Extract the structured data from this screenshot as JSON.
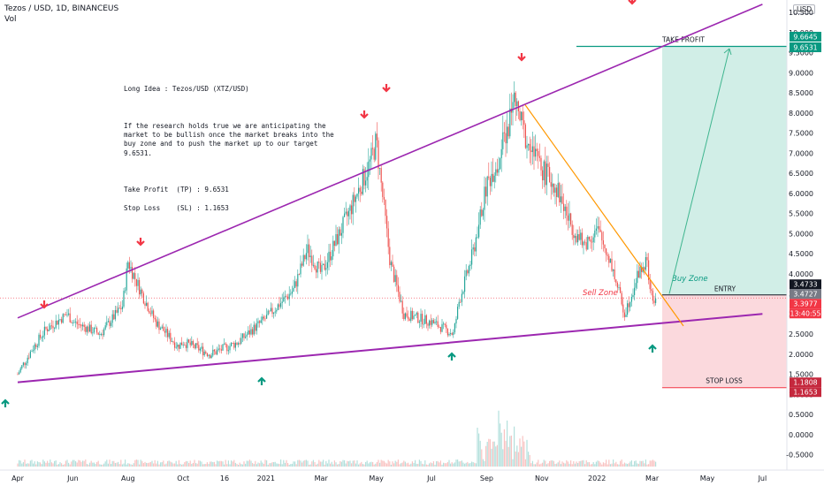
{
  "header": {
    "symbol_line": "Tezos / USD, 1D, BINANCEUS",
    "vol_label": "Vol",
    "currency_tag": "USD"
  },
  "idea": {
    "title": "Long Idea : Tezos/USD (XTZ/USD)",
    "body": "If the research holds true we are anticipating the market to be bullish once the market breaks into the buy zone and to push the market up to our target 9.6531.",
    "tp": "Take Profit  (TP) : 9.6531",
    "sl": "Stop Loss    (SL) : 1.1653"
  },
  "zones": {
    "take_profit_label": "TAKE PROFIT",
    "entry_label": "ENTRY",
    "stop_loss_label": "STOP LOSS",
    "buy_zone_label": "Buy Zone",
    "sell_zone_label": "Sell Zone",
    "take_profit": 9.6531,
    "entry": 3.4727,
    "stop_loss": 1.1653
  },
  "price_tags": [
    {
      "text": "9.6645",
      "value": 9.6645,
      "color": "#089981"
    },
    {
      "text": "9.6531",
      "value": 9.6531,
      "color": "#089981"
    },
    {
      "text": "3.4733",
      "value": 3.4733,
      "color": "#131722"
    },
    {
      "text": "3.4727",
      "value": 3.4727,
      "color": "#787b86"
    },
    {
      "text": "3.3977",
      "value": 3.3977,
      "color": "#f23645"
    },
    {
      "text": "13:40:55",
      "value": 3.22,
      "color": "#f23645"
    },
    {
      "text": "1.1808",
      "value": 1.1808,
      "color": "#c5283d"
    },
    {
      "text": "1.1653",
      "value": 1.1653,
      "color": "#c5283d"
    }
  ],
  "colors": {
    "up": "#26a69a",
    "down": "#ef5350",
    "wedge": "#9c27b0",
    "downtrend": "#ff9800",
    "tp_zone": "#d1eee7",
    "sl_zone": "#fbd9dd",
    "arrow_down": "#f23645",
    "arrow_up": "#089981",
    "projection": "#3fb58f"
  },
  "chart_data": {
    "type": "candlestick",
    "x_ticks": [
      "Apr",
      "Jun",
      "Aug",
      "Oct",
      "16",
      "2021",
      "Mar",
      "May",
      "Jul",
      "Sep",
      "Nov",
      "2022",
      "Mar",
      "May",
      "Jul"
    ],
    "y_ticks": [
      "10.500",
      "10.000",
      "9.5000",
      "9.0000",
      "8.5000",
      "8.0000",
      "7.5000",
      "7.0000",
      "6.5000",
      "6.0000",
      "5.5000",
      "5.0000",
      "4.5000",
      "4.0000",
      "3.5000",
      "3.0000",
      "2.5000",
      "2.0000",
      "1.5000",
      "1.0000",
      "0.5000",
      "0.0000",
      "-0.5000"
    ],
    "ylim": [
      -0.5,
      10.6
    ],
    "price_path": [
      [
        "Apr 2020",
        1.5
      ],
      [
        "Apr 2020 mid",
        2.1
      ],
      [
        "May 2020",
        2.6
      ],
      [
        "May 2020 late",
        3.0
      ],
      [
        "Jun 2020",
        2.8
      ],
      [
        "Jul 2020",
        2.5
      ],
      [
        "Jul 2020 late",
        3.2
      ],
      [
        "Aug 2020",
        4.3
      ],
      [
        "Aug 2020 mid",
        3.5
      ],
      [
        "Sep 2020",
        2.8
      ],
      [
        "Sep 2020 late",
        2.2
      ],
      [
        "Oct 2020",
        2.3
      ],
      [
        "Nov 2020",
        2.0
      ],
      [
        "Dec 2020",
        2.3
      ],
      [
        "Jan 2021",
        2.9
      ],
      [
        "Feb 2021",
        3.6
      ],
      [
        "Feb 2021 mid",
        4.6
      ],
      [
        "Mar 2021",
        4.0
      ],
      [
        "Apr 2021",
        5.5
      ],
      [
        "Apr 2021 late",
        6.8
      ],
      [
        "May 2021",
        7.3
      ],
      [
        "May 2021 mid",
        4.3
      ],
      [
        "Jun 2021",
        3.0
      ],
      [
        "Jul 2021",
        2.8
      ],
      [
        "Jul 2021 late",
        2.5
      ],
      [
        "Aug 2021",
        3.3
      ],
      [
        "Aug 2021 mid",
        4.5
      ],
      [
        "Sep 2021",
        6.2
      ],
      [
        "Sep 2021 mid",
        7.0
      ],
      [
        "Oct 2021",
        8.3
      ],
      [
        "Oct 2021 mid",
        7.2
      ],
      [
        "Nov 2021",
        6.6
      ],
      [
        "Nov 2021 mid",
        6.2
      ],
      [
        "Dec 2021",
        5.3
      ],
      [
        "Dec 2021 mid",
        4.7
      ],
      [
        "Jan 2022",
        5.1
      ],
      [
        "Jan 2022 mid",
        4.3
      ],
      [
        "Feb 2022",
        3.0
      ],
      [
        "Feb 2022 mid",
        4.0
      ],
      [
        "Feb 2022 late",
        4.3
      ],
      [
        "Mar 2022",
        3.3
      ],
      [
        "Mar 2022 now",
        3.3977
      ]
    ],
    "overlays": {
      "upper_wedge_line": [
        [
          "Apr 2020",
          2.9
        ],
        [
          "Jul 2022",
          10.7
        ]
      ],
      "lower_wedge_line": [
        [
          "Apr 2020",
          1.3
        ],
        [
          "Jul 2022",
          3.0
        ]
      ],
      "downtrend_line": [
        [
          "Oct 2021",
          8.2
        ],
        [
          "Mar 2022",
          2.7
        ]
      ],
      "projection_arrow": [
        [
          "Mar 2022",
          3.5
        ],
        [
          "May 2022",
          9.6
        ]
      ]
    }
  }
}
